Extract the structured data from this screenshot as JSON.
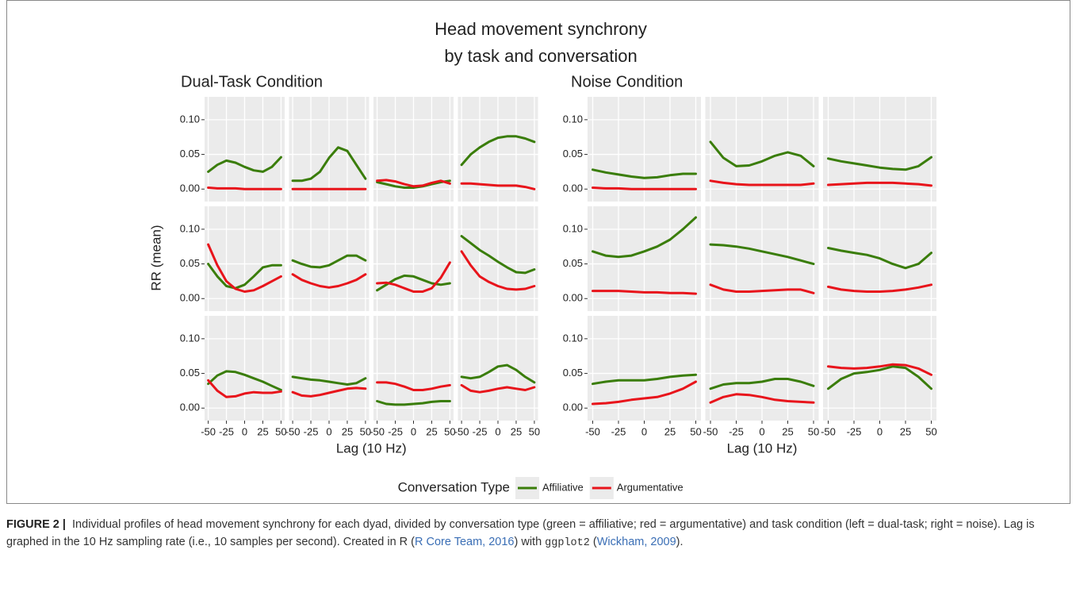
{
  "chart_data": {
    "type": "line",
    "title": "Head movement synchrony",
    "subtitle": "by task and conversation",
    "ylabel": "RR (mean)",
    "legend_title": "Conversation Type",
    "series": [
      {
        "name": "Affiliative",
        "color": "#3a7d0a"
      },
      {
        "name": "Argumentative",
        "color": "#e8141b"
      }
    ],
    "x": [
      -50,
      -37.5,
      -25,
      -12.5,
      0,
      12.5,
      25,
      37.5,
      50
    ],
    "xlim": [
      -55,
      55
    ],
    "xticks": [
      -50,
      -25,
      0,
      25,
      50
    ],
    "ylim": [
      -0.018,
      0.133
    ],
    "yticks": [
      {
        "value": 0,
        "label": "0.00"
      },
      {
        "value": 0.05,
        "label": "0.05"
      },
      {
        "value": 0.1,
        "label": "0.10"
      }
    ],
    "grid": true,
    "groups": [
      {
        "title": "Dual-Task Condition",
        "xlabel": "Lag (10 Hz)",
        "panels": [
          {
            "values": [
              [
                0.025,
                0.035,
                0.041,
                0.038,
                0.032,
                0.027,
                0.025,
                0.032,
                0.046
              ],
              [
                0.002,
                0.001,
                0.001,
                0.001,
                0,
                0,
                0,
                0,
                0
              ]
            ]
          },
          {
            "values": [
              [
                0.012,
                0.012,
                0.015,
                0.025,
                0.045,
                0.06,
                0.055,
                0.035,
                0.015
              ],
              [
                0,
                0,
                0,
                0,
                0,
                0,
                0,
                0,
                0
              ]
            ]
          },
          {
            "values": [
              [
                0.01,
                0.007,
                0.004,
                0.002,
                0.002,
                0.004,
                0.007,
                0.01,
                0.012
              ],
              [
                0.012,
                0.013,
                0.011,
                0.007,
                0.004,
                0.005,
                0.009,
                0.012,
                0.008
              ]
            ]
          },
          {
            "values": [
              [
                0.035,
                0.05,
                0.06,
                0.068,
                0.074,
                0.076,
                0.076,
                0.073,
                0.068
              ],
              [
                0.008,
                0.008,
                0.007,
                0.006,
                0.005,
                0.005,
                0.005,
                0.003,
                0
              ]
            ]
          },
          {
            "values": [
              [
                0.05,
                0.032,
                0.018,
                0.015,
                0.02,
                0.032,
                0.045,
                0.048,
                0.048
              ],
              [
                0.078,
                0.048,
                0.025,
                0.014,
                0.01,
                0.012,
                0.018,
                0.025,
                0.032
              ]
            ]
          },
          {
            "values": [
              [
                0.055,
                0.05,
                0.046,
                0.045,
                0.048,
                0.055,
                0.062,
                0.062,
                0.055
              ],
              [
                0.035,
                0.027,
                0.022,
                0.018,
                0.016,
                0.018,
                0.022,
                0.027,
                0.035
              ]
            ]
          },
          {
            "values": [
              [
                0.012,
                0.02,
                0.028,
                0.033,
                0.032,
                0.027,
                0.022,
                0.02,
                0.022
              ],
              [
                0.022,
                0.023,
                0.02,
                0.015,
                0.01,
                0.01,
                0.015,
                0.03,
                0.052
              ]
            ]
          },
          {
            "values": [
              [
                0.09,
                0.08,
                0.07,
                0.062,
                0.053,
                0.045,
                0.038,
                0.037,
                0.042
              ],
              [
                0.068,
                0.048,
                0.032,
                0.024,
                0.018,
                0.014,
                0.013,
                0.014,
                0.018
              ]
            ]
          },
          {
            "values": [
              [
                0.035,
                0.047,
                0.053,
                0.052,
                0.048,
                0.043,
                0.038,
                0.032,
                0.026
              ],
              [
                0.04,
                0.025,
                0.016,
                0.017,
                0.021,
                0.023,
                0.022,
                0.022,
                0.024
              ]
            ]
          },
          {
            "values": [
              [
                0.045,
                0.043,
                0.041,
                0.04,
                0.038,
                0.036,
                0.034,
                0.036,
                0.043
              ],
              [
                0.023,
                0.018,
                0.017,
                0.019,
                0.022,
                0.025,
                0.028,
                0.029,
                0.028
              ]
            ]
          },
          {
            "values": [
              [
                0.01,
                0.006,
                0.005,
                0.005,
                0.006,
                0.007,
                0.009,
                0.01,
                0.01
              ],
              [
                0.037,
                0.037,
                0.035,
                0.031,
                0.026,
                0.026,
                0.028,
                0.031,
                0.033
              ]
            ]
          },
          {
            "values": [
              [
                0.045,
                0.043,
                0.045,
                0.052,
                0.06,
                0.062,
                0.055,
                0.045,
                0.037
              ],
              [
                0.033,
                0.025,
                0.023,
                0.025,
                0.028,
                0.03,
                0.028,
                0.026,
                0.03
              ]
            ]
          }
        ]
      },
      {
        "title": "Noise Condition",
        "xlabel": "Lag (10 Hz)",
        "panels": [
          {
            "values": [
              [
                0.028,
                0.024,
                0.021,
                0.018,
                0.016,
                0.017,
                0.02,
                0.022,
                0.022
              ],
              [
                0.002,
                0.001,
                0.001,
                0,
                0,
                0,
                0,
                0,
                0
              ]
            ]
          },
          {
            "values": [
              [
                0.068,
                0.045,
                0.033,
                0.034,
                0.04,
                0.048,
                0.053,
                0.048,
                0.033
              ],
              [
                0.012,
                0.009,
                0.007,
                0.006,
                0.006,
                0.006,
                0.006,
                0.006,
                0.008
              ]
            ]
          },
          {
            "values": [
              [
                0.044,
                0.04,
                0.037,
                0.034,
                0.031,
                0.029,
                0.028,
                0.033,
                0.046
              ],
              [
                0.006,
                0.007,
                0.008,
                0.009,
                0.009,
                0.009,
                0.008,
                0.007,
                0.005
              ]
            ]
          },
          {
            "values": [
              [
                0.068,
                0.062,
                0.06,
                0.062,
                0.068,
                0.075,
                0.085,
                0.1,
                0.117
              ],
              [
                0.011,
                0.011,
                0.011,
                0.01,
                0.009,
                0.009,
                0.008,
                0.008,
                0.007
              ]
            ]
          },
          {
            "values": [
              [
                0.078,
                0.077,
                0.075,
                0.072,
                0.068,
                0.064,
                0.06,
                0.055,
                0.05
              ],
              [
                0.02,
                0.013,
                0.01,
                0.01,
                0.011,
                0.012,
                0.013,
                0.013,
                0.008
              ]
            ]
          },
          {
            "values": [
              [
                0.073,
                0.069,
                0.066,
                0.063,
                0.058,
                0.05,
                0.044,
                0.05,
                0.066
              ],
              [
                0.017,
                0.013,
                0.011,
                0.01,
                0.01,
                0.011,
                0.013,
                0.016,
                0.02
              ]
            ]
          },
          {
            "values": [
              [
                0.035,
                0.038,
                0.04,
                0.04,
                0.04,
                0.042,
                0.045,
                0.047,
                0.048
              ],
              [
                0.006,
                0.007,
                0.009,
                0.012,
                0.014,
                0.016,
                0.021,
                0.028,
                0.038
              ]
            ]
          },
          {
            "values": [
              [
                0.028,
                0.034,
                0.036,
                0.036,
                0.038,
                0.042,
                0.042,
                0.038,
                0.032
              ],
              [
                0.008,
                0.016,
                0.02,
                0.019,
                0.016,
                0.012,
                0.01,
                0.009,
                0.008
              ]
            ]
          },
          {
            "values": [
              [
                0.028,
                0.042,
                0.05,
                0.052,
                0.055,
                0.06,
                0.058,
                0.045,
                0.028
              ],
              [
                0.06,
                0.058,
                0.057,
                0.058,
                0.06,
                0.063,
                0.062,
                0.057,
                0.048
              ]
            ]
          }
        ]
      }
    ]
  },
  "caption": {
    "label": "FIGURE 2 |",
    "text1": "Individual profiles of head movement synchrony for each dyad, divided by conversation type (green = affiliative; red = argumentative) and task condition (left = dual-task; right = noise).  Lag is graphed in the 10 Hz sampling rate (i.e., 10 samples per second). Created in R (",
    "link1": "R Core Team, 2016",
    "text2": ") with ",
    "code": "ggplot2",
    "text3": " (",
    "link2": "Wickham, 2009",
    "text4": ")."
  }
}
